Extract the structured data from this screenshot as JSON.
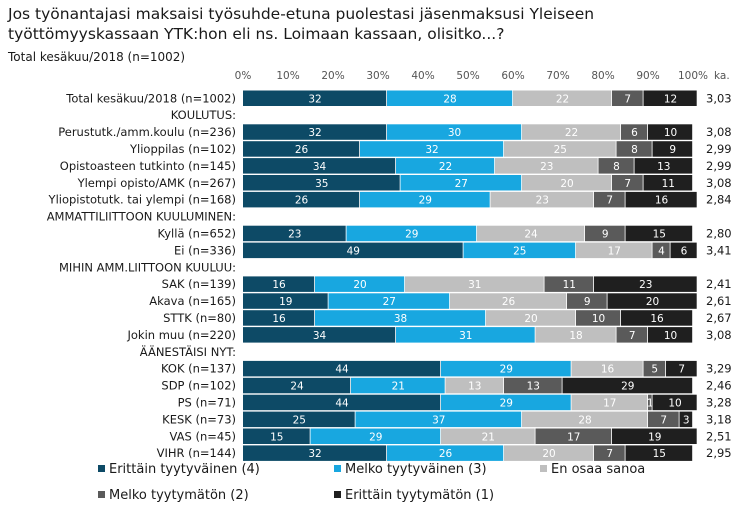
{
  "chart_data": {
    "type": "bar",
    "orientation": "horizontal",
    "stacked": true,
    "title": "Jos työnantajasi maksaisi työsuhde-etuna puolestasi jäsenmaksusi Yleiseen työttömyyskassaan YTK:hon eli ns. Loimaan kassaan, olisitko...?",
    "subtitle": "Total kesäkuu/2018 (n=1002)",
    "xlim": [
      0,
      100
    ],
    "x_ticks": [
      "0%",
      "10%",
      "20%",
      "30%",
      "40%",
      "50%",
      "60%",
      "70%",
      "80%",
      "90%",
      "100%"
    ],
    "mean_header": "ka.",
    "legend_position": "bottom",
    "series": [
      {
        "name": "Erittäin tyytyväinen (4)",
        "color": "#0d4a66"
      },
      {
        "name": "Melko tyytyväinen (3)",
        "color": "#18a7e0"
      },
      {
        "name": "En osaa sanoa",
        "color": "#bfbfbf"
      },
      {
        "name": "Melko tyytymätön (2)",
        "color": "#5a5a5a"
      },
      {
        "name": "Erittäin tyytymätön (1)",
        "color": "#1f1f1f"
      }
    ],
    "rows": [
      {
        "label": "Total kesäkuu/2018 (n=1002)",
        "values": [
          32,
          28,
          22,
          7,
          12
        ],
        "mean": "3,03"
      },
      {
        "label": "KOULUTUS:",
        "header": true
      },
      {
        "label": "Perustutk./amm.koulu (n=236)",
        "values": [
          32,
          30,
          22,
          6,
          10
        ],
        "mean": "3,08"
      },
      {
        "label": "Ylioppilas (n=102)",
        "values": [
          26,
          32,
          25,
          8,
          9
        ],
        "mean": "2,99"
      },
      {
        "label": "Opistoasteen tutkinto (n=145)",
        "values": [
          34,
          22,
          23,
          8,
          13
        ],
        "mean": "2,99"
      },
      {
        "label": "Ylempi opisto/AMK (n=267)",
        "values": [
          35,
          27,
          20,
          7,
          11
        ],
        "mean": "3,08"
      },
      {
        "label": "Yliopistotutk. tai ylempi (n=168)",
        "values": [
          26,
          29,
          23,
          7,
          16
        ],
        "mean": "2,84"
      },
      {
        "label": "AMMATTILIITTOON KUULUMINEN:",
        "header": true
      },
      {
        "label": "Kyllä (n=652)",
        "values": [
          23,
          29,
          24,
          9,
          15
        ],
        "mean": "2,80"
      },
      {
        "label": "Ei (n=336)",
        "values": [
          49,
          25,
          17,
          4,
          6
        ],
        "mean": "3,41"
      },
      {
        "label": "MIHIN AMM.LIITTOON KUULUU:",
        "header": true
      },
      {
        "label": "SAK (n=139)",
        "values": [
          16,
          20,
          31,
          11,
          23
        ],
        "mean": "2,41"
      },
      {
        "label": "Akava (n=165)",
        "values": [
          19,
          27,
          26,
          9,
          20
        ],
        "mean": "2,61"
      },
      {
        "label": "STTK (n=80)",
        "values": [
          16,
          38,
          20,
          10,
          16
        ],
        "mean": "2,67"
      },
      {
        "label": "Jokin muu (n=220)",
        "values": [
          34,
          31,
          18,
          7,
          10
        ],
        "mean": "3,08"
      },
      {
        "label": "ÄÄNESTÄISI NYT:",
        "header": true
      },
      {
        "label": "KOK (n=137)",
        "values": [
          44,
          29,
          16,
          5,
          7
        ],
        "mean": "3,29"
      },
      {
        "label": "SDP (n=102)",
        "values": [
          24,
          21,
          13,
          13,
          29
        ],
        "mean": "2,46"
      },
      {
        "label": "PS (n=71)",
        "values": [
          44,
          29,
          17,
          1,
          10
        ],
        "mean": "3,28"
      },
      {
        "label": "KESK (n=73)",
        "values": [
          25,
          37,
          28,
          7,
          3
        ],
        "mean": "3,18"
      },
      {
        "label": "VAS (n=45)",
        "values": [
          15,
          29,
          21,
          17,
          19
        ],
        "mean": "2,51"
      },
      {
        "label": "VIHR (n=144)",
        "values": [
          32,
          26,
          20,
          7,
          15
        ],
        "mean": "2,95"
      }
    ]
  }
}
